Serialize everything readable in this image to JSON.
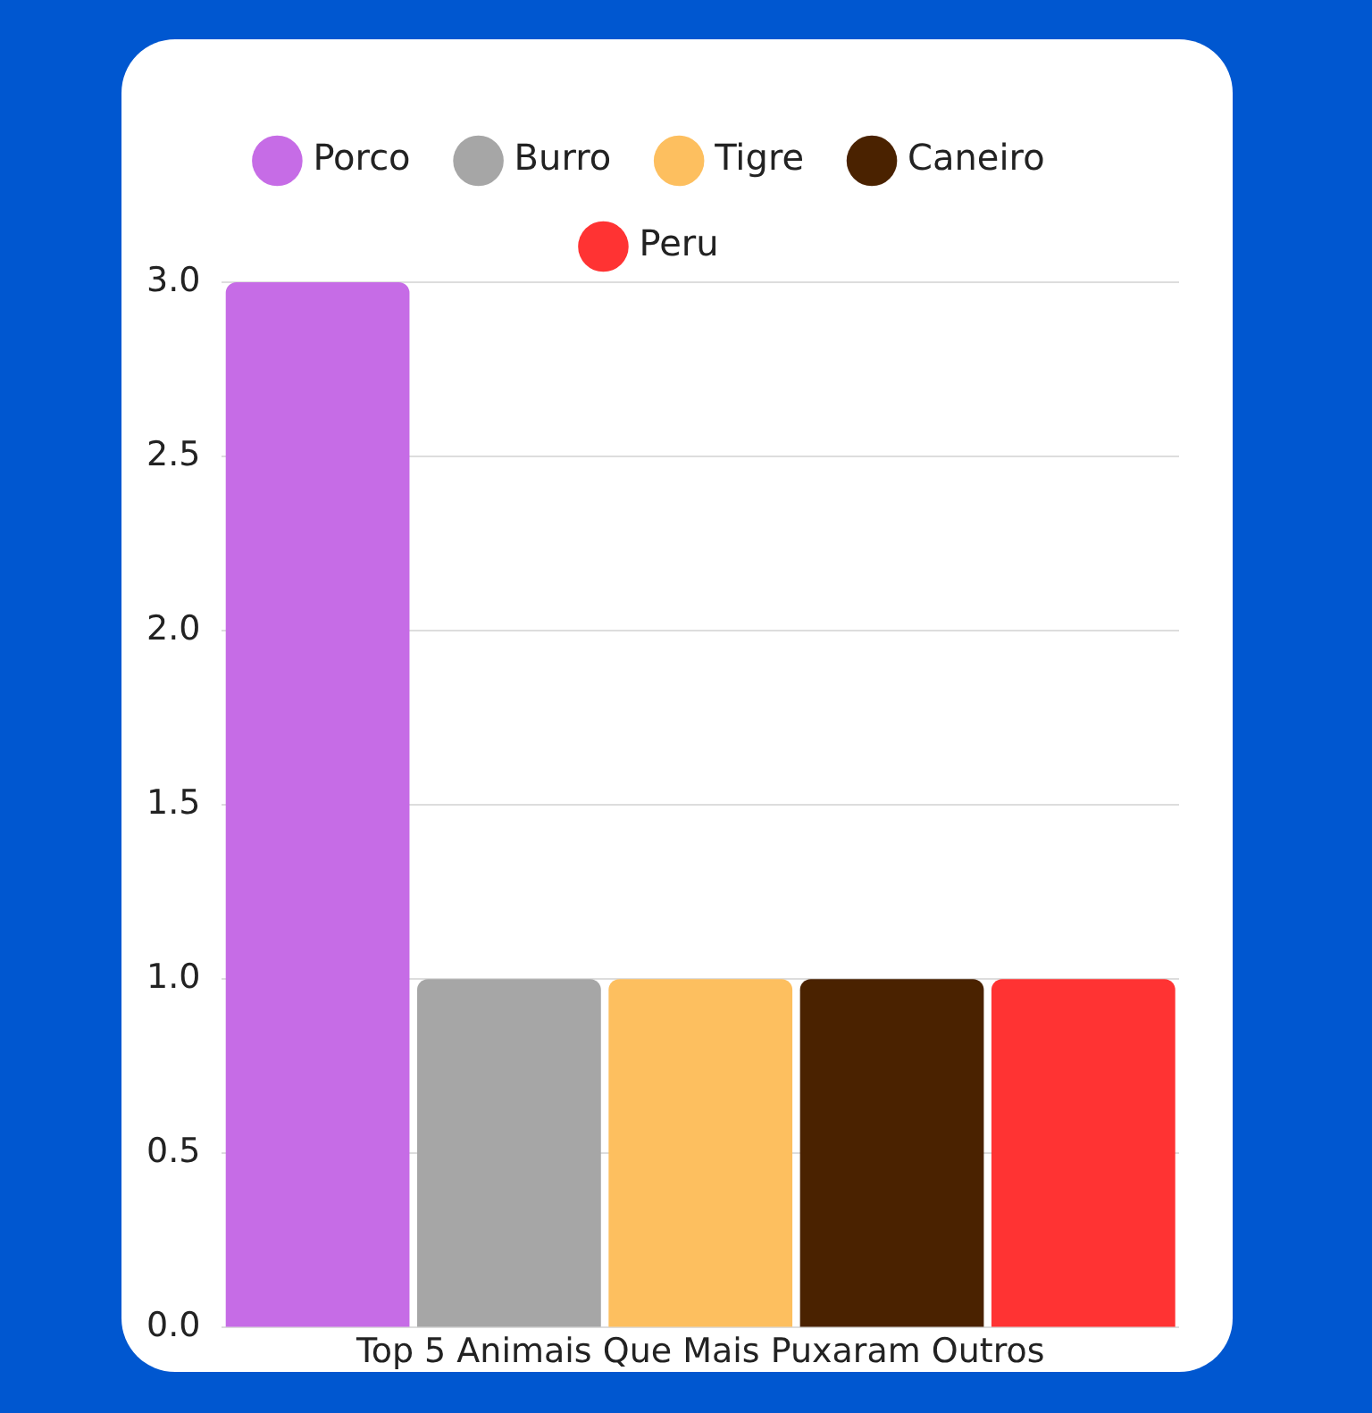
{
  "chart_data": {
    "type": "bar",
    "categories": [
      "Top 5 Animais Que Mais Puxaram Outros"
    ],
    "series": [
      {
        "name": "Porco",
        "color": "#c66ce6",
        "values": [
          3
        ]
      },
      {
        "name": "Burro",
        "color": "#a6a6a6",
        "values": [
          1
        ]
      },
      {
        "name": "Tigre",
        "color": "#fdbf5f",
        "values": [
          1
        ]
      },
      {
        "name": "Caneiro",
        "color": "#4a2200",
        "values": [
          1
        ]
      },
      {
        "name": "Peru",
        "color": "#ff3333",
        "values": [
          1
        ]
      }
    ],
    "ylim": [
      0,
      3
    ],
    "yticks": [
      {
        "value": 0,
        "label": "0.0"
      },
      {
        "value": 0.5,
        "label": "0.5"
      },
      {
        "value": 1,
        "label": "1.0"
      },
      {
        "value": 1.5,
        "label": "1.5"
      },
      {
        "value": 2,
        "label": "2.0"
      },
      {
        "value": 2.5,
        "label": "2.5"
      },
      {
        "value": 3,
        "label": "3.0"
      }
    ],
    "grid": "y",
    "legend": "top"
  }
}
